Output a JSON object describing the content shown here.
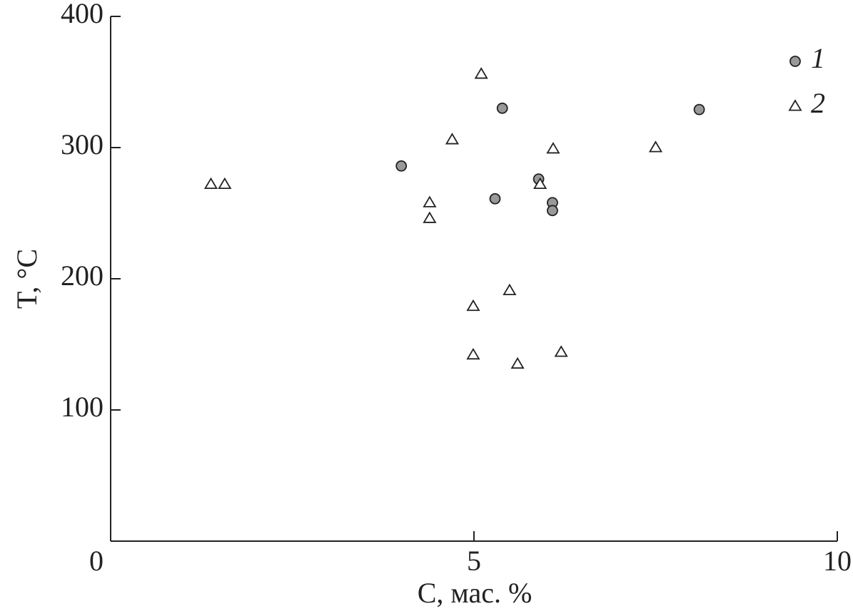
{
  "chart_data": {
    "type": "scatter",
    "x_label": "C, мас. %",
    "y_label": "T, °C",
    "xlim": [
      0,
      10
    ],
    "xticks": [
      0,
      5,
      10
    ],
    "ylim": [
      0,
      400
    ],
    "yticks": [
      100,
      200,
      300,
      400
    ],
    "legend_position": "upper right",
    "series": [
      {
        "name": "1",
        "marker": "circle",
        "color": "#999999",
        "x": [
          4.0,
          5.39,
          8.1,
          5.89,
          5.29,
          6.08,
          6.08
        ],
        "values": [
          286,
          330,
          329,
          276,
          261,
          258,
          252
        ]
      },
      {
        "name": "2",
        "marker": "triangle",
        "color": "#ffffff",
        "x": [
          1.38,
          1.57,
          5.1,
          4.7,
          6.09,
          7.5,
          5.91,
          4.39,
          4.39,
          5.49,
          4.99,
          4.99,
          5.6,
          6.2
        ],
        "values": [
          272,
          272,
          356,
          306,
          299,
          300,
          272,
          258,
          246,
          191,
          179,
          142,
          135,
          144
        ]
      }
    ]
  }
}
